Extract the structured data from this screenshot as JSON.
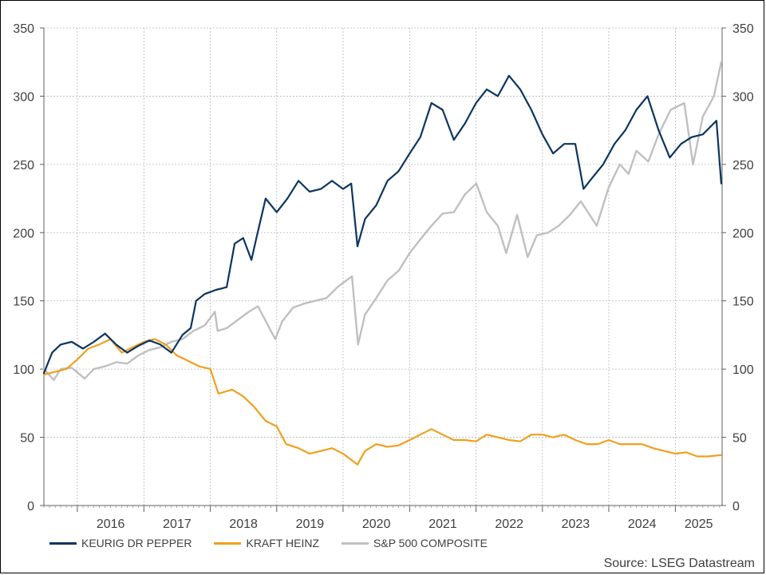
{
  "chart_data": {
    "type": "line",
    "title": "",
    "xlabel": "",
    "ylabel": "",
    "xlim": [
      "2015-07-01",
      "2025-09-15"
    ],
    "ylim": [
      0,
      350
    ],
    "y_ticks": [
      0,
      50,
      100,
      150,
      200,
      250,
      300,
      350
    ],
    "x_tick_labels": [
      "2016",
      "2017",
      "2018",
      "2019",
      "2020",
      "2021",
      "2022",
      "2023",
      "2024",
      "2025"
    ],
    "dual_y_axis": true,
    "grid": true,
    "legend_position": "bottom-left",
    "series": [
      {
        "name": "KEURIG DR PEPPER",
        "color": "#0b3560",
        "points": [
          [
            "2015-07-01",
            97
          ],
          [
            "2015-08-15",
            112
          ],
          [
            "2015-10-01",
            118
          ],
          [
            "2015-12-01",
            120
          ],
          [
            "2016-02-01",
            115
          ],
          [
            "2016-04-01",
            120
          ],
          [
            "2016-06-01",
            126
          ],
          [
            "2016-08-01",
            118
          ],
          [
            "2016-10-01",
            112
          ],
          [
            "2016-12-01",
            117
          ],
          [
            "2017-02-01",
            121
          ],
          [
            "2017-04-01",
            118
          ],
          [
            "2017-06-01",
            112
          ],
          [
            "2017-08-01",
            125
          ],
          [
            "2017-09-15",
            130
          ],
          [
            "2017-10-15",
            150
          ],
          [
            "2017-12-01",
            155
          ],
          [
            "2018-02-01",
            158
          ],
          [
            "2018-04-01",
            160
          ],
          [
            "2018-05-15",
            192
          ],
          [
            "2018-07-01",
            196
          ],
          [
            "2018-08-15",
            180
          ],
          [
            "2018-09-15",
            198
          ],
          [
            "2018-11-01",
            225
          ],
          [
            "2019-01-01",
            215
          ],
          [
            "2019-03-01",
            225
          ],
          [
            "2019-05-01",
            238
          ],
          [
            "2019-07-01",
            230
          ],
          [
            "2019-09-01",
            232
          ],
          [
            "2019-11-01",
            238
          ],
          [
            "2020-01-01",
            232
          ],
          [
            "2020-02-15",
            236
          ],
          [
            "2020-03-20",
            190
          ],
          [
            "2020-05-01",
            210
          ],
          [
            "2020-07-01",
            220
          ],
          [
            "2020-09-01",
            238
          ],
          [
            "2020-11-01",
            245
          ],
          [
            "2021-01-01",
            258
          ],
          [
            "2021-03-01",
            270
          ],
          [
            "2021-05-01",
            295
          ],
          [
            "2021-07-01",
            290
          ],
          [
            "2021-09-01",
            268
          ],
          [
            "2021-11-01",
            280
          ],
          [
            "2022-01-01",
            295
          ],
          [
            "2022-03-01",
            305
          ],
          [
            "2022-05-01",
            300
          ],
          [
            "2022-07-01",
            315
          ],
          [
            "2022-09-01",
            305
          ],
          [
            "2022-11-01",
            290
          ],
          [
            "2023-01-01",
            272
          ],
          [
            "2023-03-01",
            258
          ],
          [
            "2023-05-01",
            265
          ],
          [
            "2023-07-01",
            265
          ],
          [
            "2023-08-15",
            232
          ],
          [
            "2023-10-01",
            240
          ],
          [
            "2023-12-01",
            250
          ],
          [
            "2024-02-01",
            265
          ],
          [
            "2024-04-01",
            275
          ],
          [
            "2024-06-01",
            290
          ],
          [
            "2024-08-01",
            300
          ],
          [
            "2024-10-01",
            275
          ],
          [
            "2024-12-01",
            255
          ],
          [
            "2025-02-01",
            265
          ],
          [
            "2025-04-01",
            270
          ],
          [
            "2025-06-01",
            272
          ],
          [
            "2025-08-15",
            282
          ],
          [
            "2025-09-10",
            236
          ]
        ]
      },
      {
        "name": "KRAFT HEINZ",
        "color": "#f0a01e",
        "points": [
          [
            "2015-07-01",
            96
          ],
          [
            "2015-09-01",
            98
          ],
          [
            "2015-11-01",
            100
          ],
          [
            "2016-01-01",
            107
          ],
          [
            "2016-03-01",
            115
          ],
          [
            "2016-05-01",
            118
          ],
          [
            "2016-07-01",
            122
          ],
          [
            "2016-09-01",
            112
          ],
          [
            "2016-11-01",
            116
          ],
          [
            "2017-01-01",
            120
          ],
          [
            "2017-03-01",
            122
          ],
          [
            "2017-05-01",
            118
          ],
          [
            "2017-07-01",
            110
          ],
          [
            "2017-09-01",
            106
          ],
          [
            "2017-11-01",
            102
          ],
          [
            "2018-01-01",
            100
          ],
          [
            "2018-02-15",
            82
          ],
          [
            "2018-05-01",
            85
          ],
          [
            "2018-07-01",
            80
          ],
          [
            "2018-09-01",
            72
          ],
          [
            "2018-11-01",
            62
          ],
          [
            "2019-01-01",
            58
          ],
          [
            "2019-02-22",
            45
          ],
          [
            "2019-05-01",
            42
          ],
          [
            "2019-07-01",
            38
          ],
          [
            "2019-09-01",
            40
          ],
          [
            "2019-11-01",
            42
          ],
          [
            "2020-01-01",
            38
          ],
          [
            "2020-03-20",
            30
          ],
          [
            "2020-05-01",
            40
          ],
          [
            "2020-07-01",
            45
          ],
          [
            "2020-09-01",
            43
          ],
          [
            "2020-11-01",
            44
          ],
          [
            "2021-01-01",
            48
          ],
          [
            "2021-03-01",
            52
          ],
          [
            "2021-05-01",
            56
          ],
          [
            "2021-07-01",
            52
          ],
          [
            "2021-09-01",
            48
          ],
          [
            "2021-11-01",
            48
          ],
          [
            "2022-01-01",
            47
          ],
          [
            "2022-03-01",
            52
          ],
          [
            "2022-05-01",
            50
          ],
          [
            "2022-07-01",
            48
          ],
          [
            "2022-09-01",
            47
          ],
          [
            "2022-11-01",
            52
          ],
          [
            "2023-01-01",
            52
          ],
          [
            "2023-03-01",
            50
          ],
          [
            "2023-05-01",
            52
          ],
          [
            "2023-07-01",
            48
          ],
          [
            "2023-09-01",
            45
          ],
          [
            "2023-11-01",
            45
          ],
          [
            "2024-01-01",
            48
          ],
          [
            "2024-03-01",
            45
          ],
          [
            "2024-05-01",
            45
          ],
          [
            "2024-07-01",
            45
          ],
          [
            "2024-09-01",
            42
          ],
          [
            "2024-11-01",
            40
          ],
          [
            "2025-01-01",
            38
          ],
          [
            "2025-03-01",
            39
          ],
          [
            "2025-05-01",
            36
          ],
          [
            "2025-07-01",
            36
          ],
          [
            "2025-09-10",
            37
          ]
        ]
      },
      {
        "name": "S&P 500 COMPOSITE",
        "color": "#c0c0c0",
        "points": [
          [
            "2015-07-01",
            100
          ],
          [
            "2015-08-25",
            92
          ],
          [
            "2015-10-01",
            100
          ],
          [
            "2015-12-01",
            101
          ],
          [
            "2016-02-10",
            93
          ],
          [
            "2016-04-01",
            100
          ],
          [
            "2016-06-01",
            102
          ],
          [
            "2016-08-01",
            105
          ],
          [
            "2016-10-01",
            104
          ],
          [
            "2016-12-01",
            110
          ],
          [
            "2017-02-01",
            114
          ],
          [
            "2017-04-01",
            116
          ],
          [
            "2017-06-01",
            120
          ],
          [
            "2017-08-01",
            122
          ],
          [
            "2017-10-01",
            128
          ],
          [
            "2017-12-01",
            132
          ],
          [
            "2018-01-26",
            142
          ],
          [
            "2018-02-10",
            128
          ],
          [
            "2018-04-01",
            130
          ],
          [
            "2018-06-01",
            136
          ],
          [
            "2018-08-01",
            142
          ],
          [
            "2018-09-20",
            146
          ],
          [
            "2018-12-24",
            122
          ],
          [
            "2019-02-01",
            135
          ],
          [
            "2019-04-01",
            145
          ],
          [
            "2019-06-01",
            148
          ],
          [
            "2019-08-01",
            150
          ],
          [
            "2019-10-01",
            152
          ],
          [
            "2019-12-01",
            160
          ],
          [
            "2020-02-19",
            168
          ],
          [
            "2020-03-23",
            118
          ],
          [
            "2020-05-01",
            140
          ],
          [
            "2020-07-01",
            152
          ],
          [
            "2020-09-01",
            165
          ],
          [
            "2020-11-01",
            172
          ],
          [
            "2021-01-01",
            185
          ],
          [
            "2021-03-01",
            195
          ],
          [
            "2021-05-01",
            205
          ],
          [
            "2021-07-01",
            214
          ],
          [
            "2021-09-01",
            215
          ],
          [
            "2021-11-01",
            228
          ],
          [
            "2022-01-03",
            236
          ],
          [
            "2022-03-01",
            215
          ],
          [
            "2022-05-01",
            205
          ],
          [
            "2022-06-16",
            185
          ],
          [
            "2022-08-15",
            213
          ],
          [
            "2022-10-12",
            182
          ],
          [
            "2022-12-01",
            198
          ],
          [
            "2023-02-01",
            200
          ],
          [
            "2023-04-01",
            205
          ],
          [
            "2023-06-01",
            213
          ],
          [
            "2023-07-31",
            223
          ],
          [
            "2023-10-27",
            205
          ],
          [
            "2023-12-31",
            233
          ],
          [
            "2024-03-01",
            250
          ],
          [
            "2024-04-19",
            243
          ],
          [
            "2024-06-01",
            260
          ],
          [
            "2024-08-05",
            252
          ],
          [
            "2024-10-01",
            272
          ],
          [
            "2024-12-06",
            290
          ],
          [
            "2025-02-19",
            295
          ],
          [
            "2025-04-08",
            250
          ],
          [
            "2025-06-01",
            285
          ],
          [
            "2025-08-01",
            300
          ],
          [
            "2025-09-10",
            325
          ]
        ]
      }
    ]
  },
  "source": "Source: LSEG Datastream"
}
